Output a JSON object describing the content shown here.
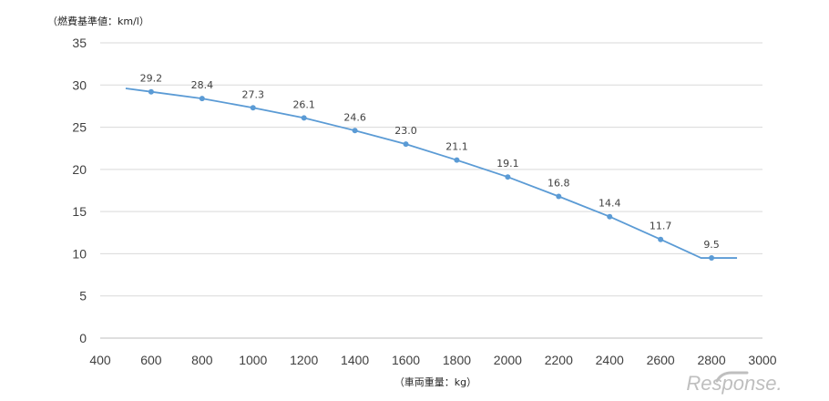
{
  "chart_data": {
    "type": "line",
    "ylabel": "（燃費基準値：km/l）",
    "xlabel": "（車両重量：kg）",
    "xlim": [
      400,
      3000
    ],
    "ylim": [
      0,
      35
    ],
    "x_ticks": [
      400,
      600,
      800,
      1000,
      1200,
      1400,
      1600,
      1800,
      2000,
      2200,
      2400,
      2600,
      2800,
      3000
    ],
    "y_ticks": [
      0,
      5,
      10,
      15,
      20,
      25,
      30,
      35
    ],
    "grid": true,
    "legend": "none",
    "line_color": "#5B9BD5",
    "line_x": [
      500,
      600,
      800,
      1000,
      1200,
      1400,
      1600,
      1800,
      2000,
      2200,
      2400,
      2600,
      2759,
      2800,
      2900
    ],
    "line_y": [
      29.6,
      29.2,
      28.4,
      27.3,
      26.1,
      24.6,
      23.0,
      21.1,
      19.1,
      16.8,
      14.4,
      11.7,
      9.5,
      9.5,
      9.5
    ],
    "points": [
      {
        "x": 600,
        "y": 29.2,
        "label": "29.2"
      },
      {
        "x": 800,
        "y": 28.4,
        "label": "28.4"
      },
      {
        "x": 1000,
        "y": 27.3,
        "label": "27.3"
      },
      {
        "x": 1200,
        "y": 26.1,
        "label": "26.1"
      },
      {
        "x": 1400,
        "y": 24.6,
        "label": "24.6"
      },
      {
        "x": 1600,
        "y": 23.0,
        "label": "23.0"
      },
      {
        "x": 1800,
        "y": 21.1,
        "label": "21.1"
      },
      {
        "x": 2000,
        "y": 19.1,
        "label": "19.1"
      },
      {
        "x": 2200,
        "y": 16.8,
        "label": "16.8"
      },
      {
        "x": 2400,
        "y": 14.4,
        "label": "14.4"
      },
      {
        "x": 2600,
        "y": 11.7,
        "label": "11.7"
      },
      {
        "x": 2800,
        "y": 9.5,
        "label": "9.5"
      }
    ]
  },
  "watermark": "Response."
}
